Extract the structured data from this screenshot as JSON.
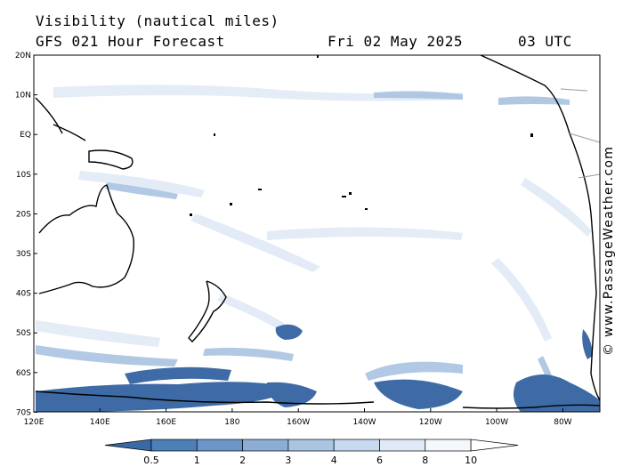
{
  "header": {
    "title": "Visibility (nautical miles)",
    "subtitle": "GFS 021 Hour Forecast",
    "date": "Fri 02 May 2025",
    "time": "03 UTC"
  },
  "axes": {
    "lat_labels": [
      "20N",
      "10N",
      "EQ",
      "10S",
      "20S",
      "30S",
      "40S",
      "50S",
      "60S",
      "70S"
    ],
    "lon_labels": [
      "120E",
      "140E",
      "160E",
      "180",
      "160W",
      "140W",
      "120W",
      "100W",
      "80W"
    ]
  },
  "legend": {
    "labels": [
      "0.5",
      "1",
      "2",
      "3",
      "4",
      "6",
      "8",
      "10"
    ],
    "colors": [
      "#3a6aa6",
      "#4d7fb8",
      "#6b96c7",
      "#8caed5",
      "#aac4e2",
      "#c6d9ee",
      "#e0eaf6",
      "#f4f8fc"
    ]
  },
  "credit": "© www.PassageWeather.com",
  "colors": {
    "land_outline": "#000000",
    "low_vis": "#3e6ba6",
    "border": "#9a9a9a"
  }
}
